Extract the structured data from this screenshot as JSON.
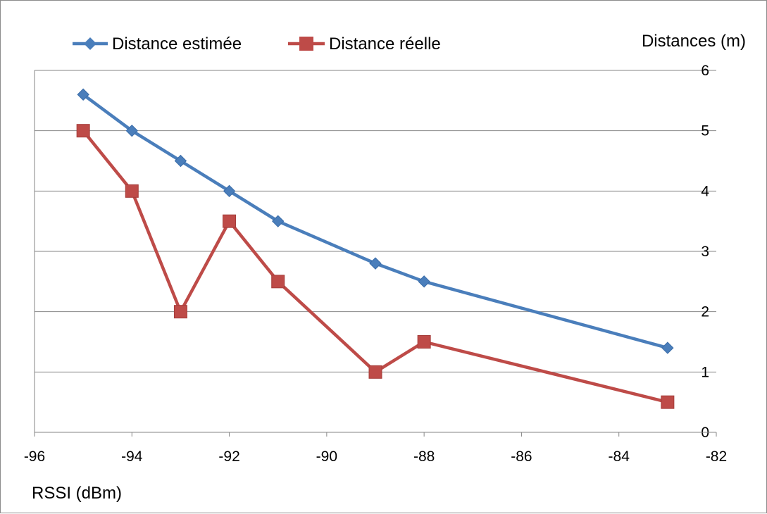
{
  "chart_data": {
    "type": "line",
    "x": [
      -95,
      -94,
      -93,
      -92,
      -91,
      -89,
      -88,
      -83
    ],
    "series": [
      {
        "name": "Distance estimée",
        "color": "#4a7ebb",
        "marker": "diamond",
        "values": [
          5.6,
          5.0,
          4.5,
          4.0,
          3.5,
          2.8,
          2.5,
          1.4
        ]
      },
      {
        "name": "Distance réelle",
        "color": "#be4b48",
        "marker": "square",
        "values": [
          5.0,
          4.0,
          2.0,
          3.5,
          2.5,
          1.0,
          1.5,
          0.5
        ]
      }
    ],
    "xlabel": "RSSI (dBm)",
    "ylabel": "Distances (m)",
    "xlim": [
      -96,
      -82
    ],
    "ylim": [
      0,
      6
    ],
    "xticks": [
      -96,
      -94,
      -92,
      -90,
      -88,
      -86,
      -84,
      -82
    ],
    "yticks": [
      0,
      1,
      2,
      3,
      4,
      5,
      6
    ],
    "x_tick_labels": [
      "-96",
      "-94",
      "-92",
      "-90",
      "-88",
      "-86",
      "-84",
      "-82"
    ],
    "y_tick_labels": [
      "0",
      "1",
      "2",
      "3",
      "4",
      "5",
      "6"
    ],
    "y_axis_side": "right",
    "grid": true,
    "legend_position": "top-left"
  }
}
